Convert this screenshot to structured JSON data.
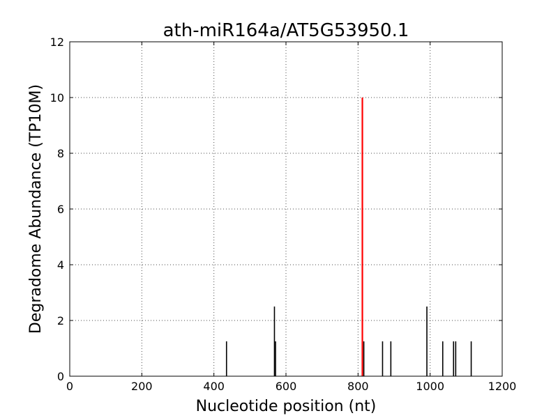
{
  "chart_data": {
    "type": "bar",
    "title": "ath-miR164a/AT5G53950.1",
    "xlabel": "Nucleotide position (nt)",
    "ylabel": "Degradome Abundance (TP10M)",
    "xlim": [
      0,
      1200
    ],
    "ylim": [
      0,
      12
    ],
    "xticks": [
      0,
      200,
      400,
      600,
      800,
      1000,
      1200
    ],
    "yticks": [
      0,
      2,
      4,
      6,
      8,
      10,
      12
    ],
    "grid": true,
    "colors": {
      "default": "#000000",
      "highlight": "#ff0000"
    },
    "series": [
      {
        "values": [
          {
            "x": 435,
            "y": 1.25
          },
          {
            "x": 568,
            "y": 2.5
          },
          {
            "x": 571,
            "y": 1.25
          },
          {
            "x": 812,
            "y": 10.0,
            "highlight": true
          },
          {
            "x": 816,
            "y": 1.25
          },
          {
            "x": 868,
            "y": 1.25
          },
          {
            "x": 891,
            "y": 1.25
          },
          {
            "x": 991,
            "y": 2.5
          },
          {
            "x": 1035,
            "y": 1.25
          },
          {
            "x": 1065,
            "y": 1.25
          },
          {
            "x": 1071,
            "y": 1.25
          },
          {
            "x": 1114,
            "y": 1.25
          }
        ]
      }
    ]
  }
}
